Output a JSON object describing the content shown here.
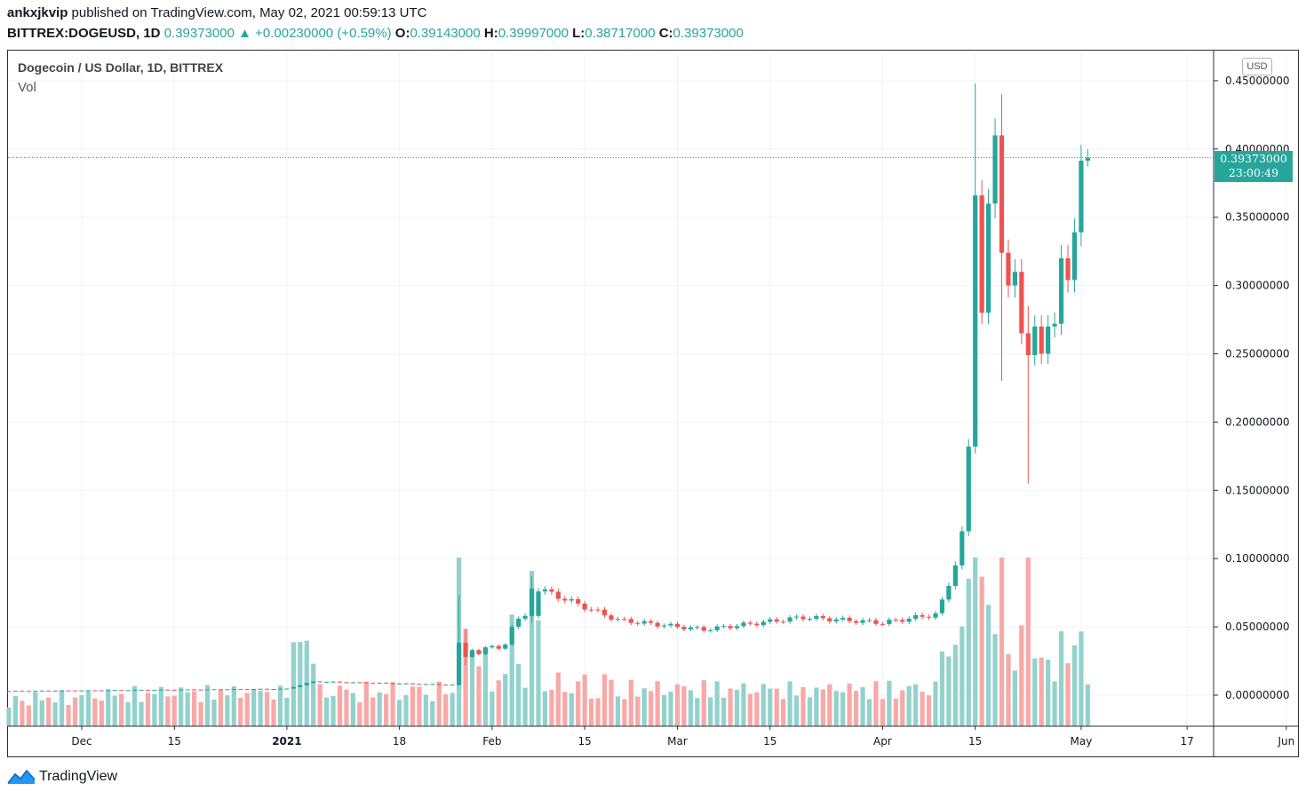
{
  "header": {
    "publisher": "ankxjkvip",
    "published_text": " published on TradingView.com, May 02, 2021 00:59:13 UTC",
    "symbol": "BITTREX:DOGEUSD, 1D",
    "price": "0.39373000",
    "change_arrow": "▲",
    "change": "+0.00230000 (+0.59%)",
    "o_label": "O:",
    "o": "0.39143000",
    "h_label": "H:",
    "h": "0.39997000",
    "l_label": "L:",
    "l": "0.38717000",
    "c_label": "C:",
    "c": "0.39373000"
  },
  "legend": {
    "title": "Dogecoin / US Dollar, 1D, BITTREX",
    "volume": "Vol"
  },
  "price_axis": {
    "currency": "USD",
    "last_price": "0.39373000",
    "countdown": "23:00:49"
  },
  "brand": {
    "name": "TradingView",
    "logo": "tradingview-logo-icon"
  },
  "colors": {
    "up": "#26a69a",
    "down": "#ef5350",
    "up_volume": "#92d2cc",
    "down_volume": "#f7a9a7",
    "grid": "#f0f3fa"
  },
  "chart_data": {
    "type": "candlestick",
    "title": "Dogecoin / US Dollar, 1D, BITTREX",
    "y_ticks": [
      "0.45000000",
      "0.40000000",
      "0.35000000",
      "0.30000000",
      "0.25000000",
      "0.20000000",
      "0.15000000",
      "0.10000000",
      "0.05000000",
      "0.00000000"
    ],
    "ylim": [
      -0.023,
      0.45
    ],
    "x_ticks": [
      "Dec",
      "15",
      "2021",
      "18",
      "Feb",
      "15",
      "Mar",
      "15",
      "Apr",
      "15",
      "May",
      "17",
      "Jun"
    ],
    "grid": true,
    "series": [
      {
        "name": "DOGEUSD",
        "date": "2021-01-27",
        "open": 0.0074,
        "high": 0.0734,
        "low": 0.0068,
        "close": 0.0383
      },
      {
        "name": "DOGEUSD",
        "date": "2021-01-28",
        "open": 0.0383,
        "high": 0.048,
        "low": 0.022,
        "close": 0.028
      },
      {
        "name": "DOGEUSD",
        "date": "2021-02-07",
        "open": 0.058,
        "high": 0.087,
        "low": 0.053,
        "close": 0.078
      },
      {
        "name": "DOGEUSD",
        "date": "2021-04-15",
        "open": 0.182,
        "high": 0.448,
        "low": 0.177,
        "close": 0.366
      },
      {
        "name": "DOGEUSD",
        "date": "2021-04-19",
        "open": 0.41,
        "high": 0.44,
        "low": 0.23,
        "close": 0.324
      },
      {
        "name": "DOGEUSD",
        "date": "2021-04-23",
        "open": 0.265,
        "high": 0.285,
        "low": 0.155,
        "close": 0.249
      },
      {
        "name": "DOGEUSD",
        "date": "2021-05-02",
        "open": 0.39143,
        "high": 0.39997,
        "low": 0.38717,
        "close": 0.39373
      }
    ]
  }
}
